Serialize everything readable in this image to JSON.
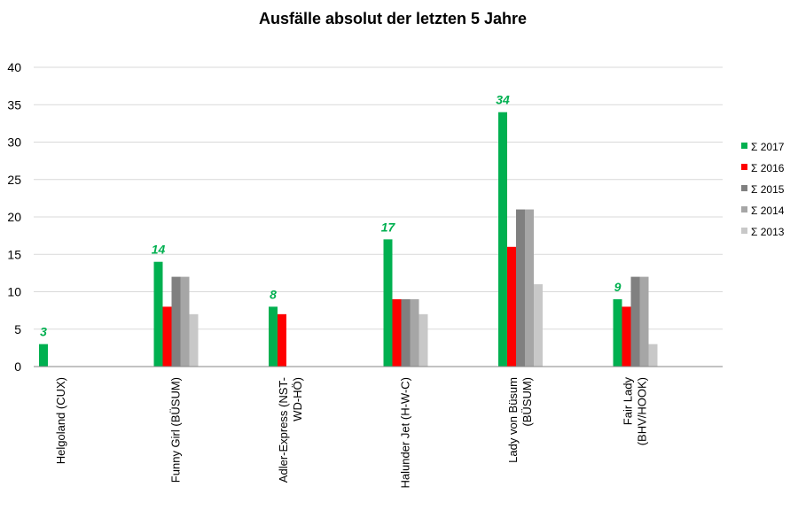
{
  "chart_data": {
    "type": "bar",
    "title": "Ausfälle absolut der letzten 5 Jahre",
    "xlabel": "",
    "ylabel": "",
    "ylim": [
      0,
      40
    ],
    "yticks": [
      0,
      5,
      10,
      15,
      20,
      25,
      30,
      35,
      40
    ],
    "grid": true,
    "legend_position": "right",
    "categories": [
      [
        "Helgoland (CUX)"
      ],
      [
        "Funny Girl (BÜSUM)"
      ],
      [
        "Adler-Express (NST-",
        "WD-HÖ)"
      ],
      [
        "Halunder Jet (H-W-C)"
      ],
      [
        "Lady von Büsum",
        "(BÜSUM)"
      ],
      [
        "Fair Lady",
        "(BHV/HOOK)"
      ]
    ],
    "series": [
      {
        "name": "Σ 2017",
        "color": "#00b050",
        "values": [
          3,
          14,
          8,
          17,
          34,
          9
        ]
      },
      {
        "name": "Σ 2016",
        "color": "#ff0000",
        "values": [
          0,
          8,
          7,
          9,
          16,
          8
        ]
      },
      {
        "name": "Σ 2015",
        "color": "#808080",
        "values": [
          0,
          12,
          0,
          9,
          21,
          12
        ]
      },
      {
        "name": "Σ 2014",
        "color": "#a6a6a6",
        "values": [
          0,
          12,
          0,
          9,
          21,
          12
        ]
      },
      {
        "name": "Σ 2013",
        "color": "#c8c8c8",
        "values": [
          0,
          7,
          0,
          7,
          11,
          3
        ]
      }
    ],
    "data_labels": {
      "series": "Σ 2017",
      "color": "#00b050",
      "values": [
        3,
        14,
        8,
        17,
        34,
        9
      ]
    }
  }
}
